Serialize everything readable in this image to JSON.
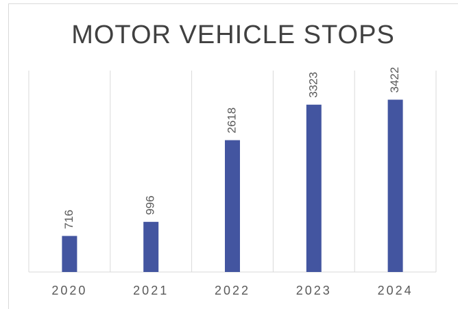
{
  "chart_data": {
    "type": "bar",
    "title": "MOTOR VEHICLE STOPS",
    "categories": [
      "2020",
      "2021",
      "2022",
      "2023",
      "2024"
    ],
    "values": [
      716,
      996,
      2618,
      3323,
      3422
    ],
    "color": "#4355a0",
    "ylim": [
      0,
      4000
    ]
  }
}
